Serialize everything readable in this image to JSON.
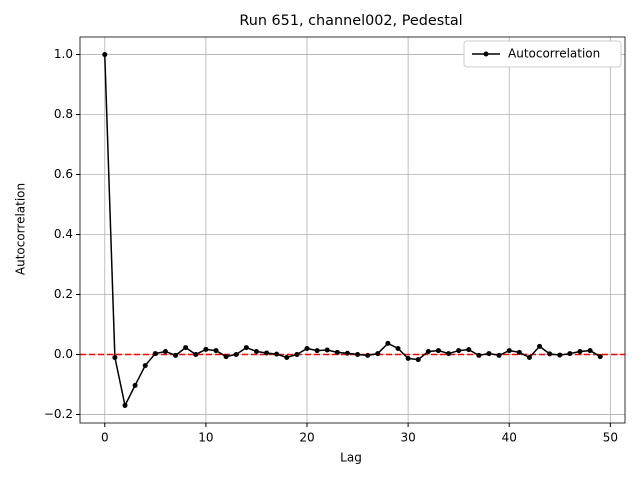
{
  "chart_data": {
    "type": "line",
    "title": "Run 651, channel002, Pedestal",
    "xlabel": "Lag",
    "ylabel": "Autocorrelation",
    "x": [
      0,
      1,
      2,
      3,
      4,
      5,
      6,
      7,
      8,
      9,
      10,
      11,
      12,
      13,
      14,
      15,
      16,
      17,
      18,
      19,
      20,
      21,
      22,
      23,
      24,
      25,
      26,
      27,
      28,
      29,
      30,
      31,
      32,
      33,
      34,
      35,
      36,
      37,
      38,
      39,
      40,
      41,
      42,
      43,
      44,
      45,
      46,
      47,
      48,
      49
    ],
    "series": [
      {
        "name": "Autocorrelation",
        "color": "#000000",
        "values": [
          1.0,
          -0.01,
          -0.17,
          -0.103,
          -0.037,
          0.003,
          0.01,
          -0.003,
          0.023,
          0.0,
          0.017,
          0.013,
          -0.007,
          0.0,
          0.023,
          0.01,
          0.005,
          0.001,
          -0.01,
          0.0,
          0.02,
          0.013,
          0.015,
          0.007,
          0.004,
          0.0,
          -0.003,
          0.003,
          0.037,
          0.02,
          -0.013,
          -0.017,
          0.01,
          0.013,
          0.003,
          0.013,
          0.016,
          -0.003,
          0.003,
          -0.003,
          0.013,
          0.007,
          -0.01,
          0.027,
          0.002,
          -0.002,
          0.003,
          0.01,
          0.013,
          -0.007
        ]
      }
    ],
    "hline": 0,
    "hline_color": "#ff0000",
    "xlim": [
      -2.45,
      51.45
    ],
    "xticks": [
      0,
      10,
      20,
      30,
      40,
      50
    ],
    "ylim": [
      -0.2285,
      1.0585
    ],
    "yticks": [
      {
        "value": -0.2,
        "label": "−0.2"
      },
      {
        "value": 0,
        "label": "0.0"
      },
      {
        "value": 0.2,
        "label": "0.2"
      },
      {
        "value": 0.4,
        "label": "0.4"
      },
      {
        "value": 0.6,
        "label": "0.6"
      },
      {
        "value": 0.8,
        "label": "0.8"
      },
      {
        "value": 1.0,
        "label": "1.0"
      }
    ],
    "grid": true,
    "legend": "upper right"
  }
}
